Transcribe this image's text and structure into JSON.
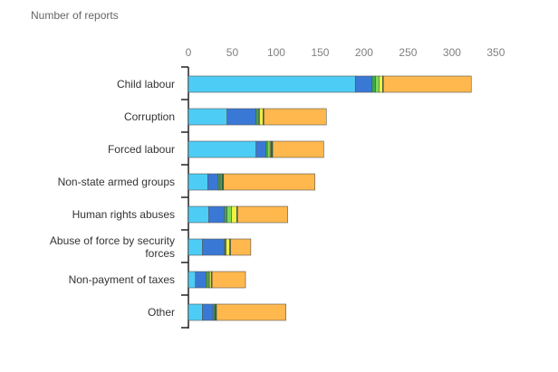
{
  "chart_data": {
    "type": "bar",
    "orientation": "horizontal",
    "stacked": true,
    "title": "",
    "ylabel": "Number of reports",
    "xlabel": "",
    "xlim": [
      0,
      350
    ],
    "x_ticks": [
      0,
      50,
      100,
      150,
      200,
      250,
      300,
      350
    ],
    "grid": false,
    "legend": "none",
    "categories": [
      "Child labour",
      "Corruption",
      "Forced labour",
      "Non-state armed groups",
      "Human rights abuses",
      "Abuse of force by security forces",
      "Non-payment of taxes",
      "Other"
    ],
    "series": [
      {
        "color": "#4dcdf5",
        "values": [
          190,
          44,
          77,
          22,
          23,
          16,
          8,
          16
        ]
      },
      {
        "color": "#3a78d6",
        "values": [
          19,
          33,
          11,
          12,
          18,
          25,
          12,
          12
        ]
      },
      {
        "color": "#39a84a",
        "values": [
          4,
          3,
          2,
          2,
          3,
          1,
          3,
          2
        ]
      },
      {
        "color": "#7ed957",
        "values": [
          4,
          1,
          3,
          1,
          5,
          1,
          1,
          0
        ]
      },
      {
        "color": "#f0f040",
        "values": [
          4,
          4,
          1,
          1,
          6,
          4,
          2,
          0
        ]
      },
      {
        "color": "#1a6b3c",
        "values": [
          1,
          1,
          2,
          2,
          1,
          1,
          1,
          2
        ]
      },
      {
        "color": "#ffb84d",
        "values": [
          100,
          71,
          58,
          104,
          57,
          23,
          38,
          79
        ]
      }
    ]
  }
}
